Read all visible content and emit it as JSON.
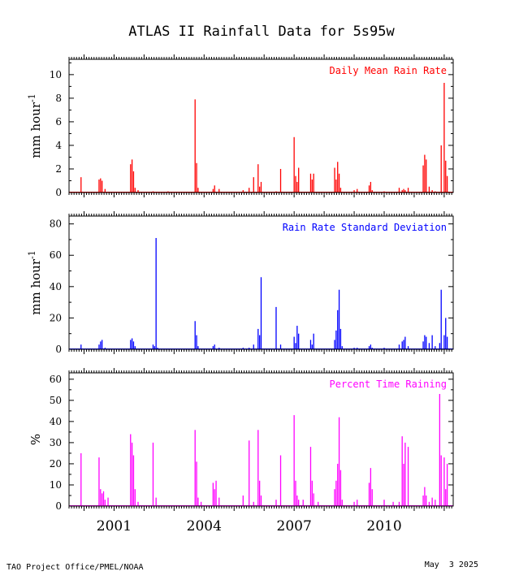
{
  "title": "ATLAS II Rainfall Data for 5s95w",
  "footer_left": "TAO Project Office/PMEL/NOAA",
  "footer_right": "May  3 2025",
  "x_axis": {
    "ticks": [
      "2001",
      "2004",
      "2007",
      "2010"
    ],
    "tick_years": [
      2001,
      2004,
      2007,
      2010
    ],
    "range_years": [
      1999.5,
      2012.3
    ]
  },
  "colors": {
    "panel1": "#ff0000",
    "panel2": "#0000ff",
    "panel3": "#ff00ff"
  },
  "chart_data": [
    {
      "type": "bar",
      "label": "Daily Mean Rain Rate",
      "ylabel": "mm hour",
      "ylabel_sup": "-1",
      "ylim": [
        0,
        11.3
      ],
      "yticks": [
        0,
        2,
        4,
        6,
        8,
        10
      ],
      "color": "#ff0000",
      "x_years": [
        1999.9,
        2000.5,
        2000.55,
        2000.6,
        2000.7,
        2001.55,
        2001.6,
        2001.65,
        2001.7,
        2001.8,
        2002.3,
        2002.8,
        2003.7,
        2003.75,
        2003.8,
        2004.3,
        2004.35,
        2004.5,
        2005.3,
        2005.5,
        2005.65,
        2005.8,
        2005.85,
        2005.9,
        2006.4,
        2006.55,
        2007.0,
        2007.05,
        2007.1,
        2007.15,
        2007.55,
        2007.6,
        2007.65,
        2008.35,
        2008.4,
        2008.45,
        2008.5,
        2008.55,
        2009.0,
        2009.1,
        2009.5,
        2009.55,
        2009.6,
        2010.0,
        2010.5,
        2010.6,
        2010.65,
        2010.7,
        2010.8,
        2011.3,
        2011.35,
        2011.4,
        2011.5,
        2011.6,
        2011.7,
        2011.9,
        2012.0,
        2012.05,
        2012.1
      ],
      "values": [
        1.3,
        1.1,
        1.2,
        1.0,
        0.3,
        2.4,
        2.8,
        1.8,
        0.4,
        0.2,
        0.1,
        0.1,
        7.9,
        2.5,
        0.4,
        0.3,
        0.6,
        0.3,
        0.2,
        0.4,
        1.3,
        2.4,
        0.5,
        0.9,
        0.1,
        2.0,
        4.7,
        1.4,
        0.9,
        2.1,
        1.6,
        1.1,
        1.6,
        2.1,
        1.1,
        2.6,
        1.6,
        0.4,
        0.2,
        0.3,
        0.6,
        0.9,
        0.2,
        0.1,
        0.4,
        0.2,
        0.3,
        0.2,
        0.4,
        2.3,
        3.2,
        2.8,
        0.5,
        0.2,
        0.1,
        4.0,
        9.3,
        2.7,
        1.4
      ]
    },
    {
      "type": "bar",
      "label": "Rain Rate Standard Deviation",
      "ylabel": "mm hour",
      "ylabel_sup": "-1",
      "ylim": [
        0,
        85
      ],
      "yticks": [
        0,
        20,
        40,
        60,
        80
      ],
      "color": "#0000ff",
      "x_years": [
        1999.9,
        2000.5,
        2000.55,
        2000.6,
        2000.7,
        2001.55,
        2001.6,
        2001.65,
        2001.7,
        2002.3,
        2002.35,
        2002.4,
        2002.45,
        2003.7,
        2003.75,
        2003.8,
        2004.3,
        2004.35,
        2004.5,
        2005.3,
        2005.5,
        2005.65,
        2005.8,
        2005.85,
        2005.9,
        2006.4,
        2006.55,
        2007.0,
        2007.05,
        2007.1,
        2007.15,
        2007.55,
        2007.6,
        2007.65,
        2008.35,
        2008.4,
        2008.45,
        2008.5,
        2008.55,
        2008.6,
        2009.0,
        2009.1,
        2009.5,
        2009.55,
        2009.6,
        2010.0,
        2010.5,
        2010.6,
        2010.65,
        2010.7,
        2010.8,
        2011.3,
        2011.35,
        2011.4,
        2011.5,
        2011.6,
        2011.7,
        2011.85,
        2011.9,
        2012.0,
        2012.05,
        2012.1
      ],
      "values": [
        3,
        3,
        5,
        6,
        1,
        6,
        7,
        5,
        2,
        3,
        2,
        71,
        1,
        18,
        9,
        2,
        2,
        3,
        1,
        1,
        1,
        3,
        13,
        9,
        46,
        27,
        3,
        8,
        4,
        15,
        10,
        6,
        3,
        10,
        6,
        12,
        25,
        38,
        13,
        2,
        1,
        1,
        2,
        3,
        1,
        1,
        3,
        5,
        6,
        8,
        2,
        5,
        9,
        8,
        4,
        9,
        2,
        4,
        38,
        9,
        20,
        8
      ]
    },
    {
      "type": "bar",
      "label": "Percent Time Raining",
      "ylabel": "%",
      "ylim": [
        0,
        63
      ],
      "yticks": [
        0,
        10,
        20,
        30,
        40,
        50,
        60
      ],
      "color": "#ff00ff",
      "x_years": [
        1999.9,
        2000.5,
        2000.55,
        2000.6,
        2000.65,
        2000.7,
        2000.8,
        2001.55,
        2001.6,
        2001.65,
        2001.7,
        2001.8,
        2002.3,
        2002.4,
        2003.7,
        2003.75,
        2003.8,
        2003.9,
        2004.3,
        2004.35,
        2004.4,
        2004.5,
        2005.3,
        2005.5,
        2005.65,
        2005.8,
        2005.85,
        2005.9,
        2006.4,
        2006.55,
        2007.0,
        2007.05,
        2007.1,
        2007.15,
        2007.3,
        2007.55,
        2007.6,
        2007.65,
        2007.8,
        2008.35,
        2008.4,
        2008.45,
        2008.5,
        2008.55,
        2008.6,
        2009.0,
        2009.1,
        2009.5,
        2009.55,
        2009.6,
        2010.0,
        2010.3,
        2010.5,
        2010.6,
        2010.65,
        2010.7,
        2010.8,
        2011.3,
        2011.35,
        2011.4,
        2011.5,
        2011.6,
        2011.7,
        2011.85,
        2011.9,
        2012.0,
        2012.05,
        2012.1
      ],
      "values": [
        25,
        23,
        8,
        6,
        7,
        3,
        4,
        34,
        30,
        24,
        8,
        2,
        30,
        4,
        36,
        21,
        4,
        2,
        11,
        8,
        12,
        4,
        5,
        31,
        2,
        36,
        12,
        5,
        3,
        24,
        43,
        12,
        5,
        3,
        3,
        28,
        12,
        6,
        2,
        8,
        12,
        20,
        42,
        17,
        3,
        2,
        3,
        11,
        18,
        8,
        3,
        2,
        2,
        33,
        20,
        30,
        28,
        5,
        9,
        5,
        2,
        4,
        3,
        53,
        24,
        23,
        8,
        20
      ]
    }
  ]
}
